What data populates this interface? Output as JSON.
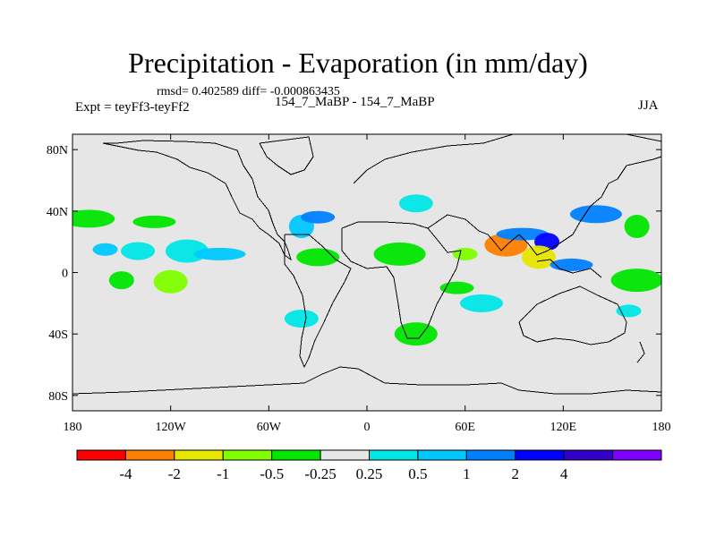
{
  "title": "Precipitation - Evaporation (in mm/day)",
  "stats": "rmsd= 0.402589 diff= -0.000863435",
  "experiment": "Expt = teyFf3-teyFf2",
  "difference_name": "154_7_MaBP - 154_7_MaBP",
  "season": "JJA",
  "map": {
    "projection": "cylindrical-equidistant",
    "background": "#e6e6e6",
    "lon_range": [
      -180,
      180
    ],
    "lat_range": [
      -90,
      90
    ],
    "lon_ticks": [
      {
        "value": -180,
        "label": "180"
      },
      {
        "value": -120,
        "label": "120W"
      },
      {
        "value": -60,
        "label": "60W"
      },
      {
        "value": 0,
        "label": "0"
      },
      {
        "value": 60,
        "label": "60E"
      },
      {
        "value": 120,
        "label": "120E"
      },
      {
        "value": 180,
        "label": "180"
      }
    ],
    "lat_ticks": [
      {
        "value": 80,
        "label": "80N"
      },
      {
        "value": 40,
        "label": "40N"
      },
      {
        "value": 0,
        "label": "0"
      },
      {
        "value": -40,
        "label": "40S"
      },
      {
        "value": -80,
        "label": "80S"
      }
    ]
  },
  "colorbar": {
    "colors": [
      "#ff0000",
      "#ff8000",
      "#e6e600",
      "#80ff00",
      "#00e600",
      "#e6e6e6",
      "#00e6e6",
      "#00c8ff",
      "#0080ff",
      "#0000ff",
      "#3200c8",
      "#8000ff"
    ],
    "labels": [
      "-4",
      "-2",
      "-1",
      "-0.5",
      "-0.25",
      "0.25",
      "0.5",
      "1",
      "2",
      "4"
    ]
  },
  "chart_data": {
    "type": "heatmap",
    "field": "Precipitation - Evaporation difference",
    "units": "mm/day",
    "contour_levels": [
      -4,
      -2,
      -1,
      -0.5,
      -0.25,
      0.25,
      0.5,
      1,
      2,
      4
    ],
    "regions": [
      {
        "lon": -160,
        "lat": 15,
        "value": 0.75
      },
      {
        "lon": -140,
        "lat": 14,
        "value": 0.4
      },
      {
        "lon": -110,
        "lat": 14,
        "value": 0.4
      },
      {
        "lon": -90,
        "lat": 12,
        "value": 0.75
      },
      {
        "lon": -150,
        "lat": -5,
        "value": -0.35
      },
      {
        "lon": -120,
        "lat": -6,
        "value": -0.5
      },
      {
        "lon": -130,
        "lat": 33,
        "value": -0.4
      },
      {
        "lon": -170,
        "lat": 35,
        "value": -0.3
      },
      {
        "lon": -40,
        "lat": 30,
        "value": 0.75
      },
      {
        "lon": -30,
        "lat": 36,
        "value": 1.5
      },
      {
        "lon": -30,
        "lat": 10,
        "value": -0.35
      },
      {
        "lon": 20,
        "lat": 12,
        "value": -0.4
      },
      {
        "lon": 60,
        "lat": 12,
        "value": -0.75
      },
      {
        "lon": 30,
        "lat": 45,
        "value": 0.4
      },
      {
        "lon": 85,
        "lat": 18,
        "value": -3
      },
      {
        "lon": 95,
        "lat": 25,
        "value": 1.5
      },
      {
        "lon": 110,
        "lat": 20,
        "value": 3
      },
      {
        "lon": 105,
        "lat": 10,
        "value": -1.5
      },
      {
        "lon": 125,
        "lat": 5,
        "value": 1.5
      },
      {
        "lon": 140,
        "lat": 38,
        "value": 1.5
      },
      {
        "lon": 165,
        "lat": 30,
        "value": -0.35
      },
      {
        "lon": 55,
        "lat": -10,
        "value": -0.4
      },
      {
        "lon": 70,
        "lat": -20,
        "value": 0.4
      },
      {
        "lon": 165,
        "lat": -5,
        "value": -0.35
      },
      {
        "lon": 160,
        "lat": -25,
        "value": 0.4
      },
      {
        "lon": -40,
        "lat": -30,
        "value": 0.4
      },
      {
        "lon": 30,
        "lat": -40,
        "value": -0.35
      }
    ]
  }
}
